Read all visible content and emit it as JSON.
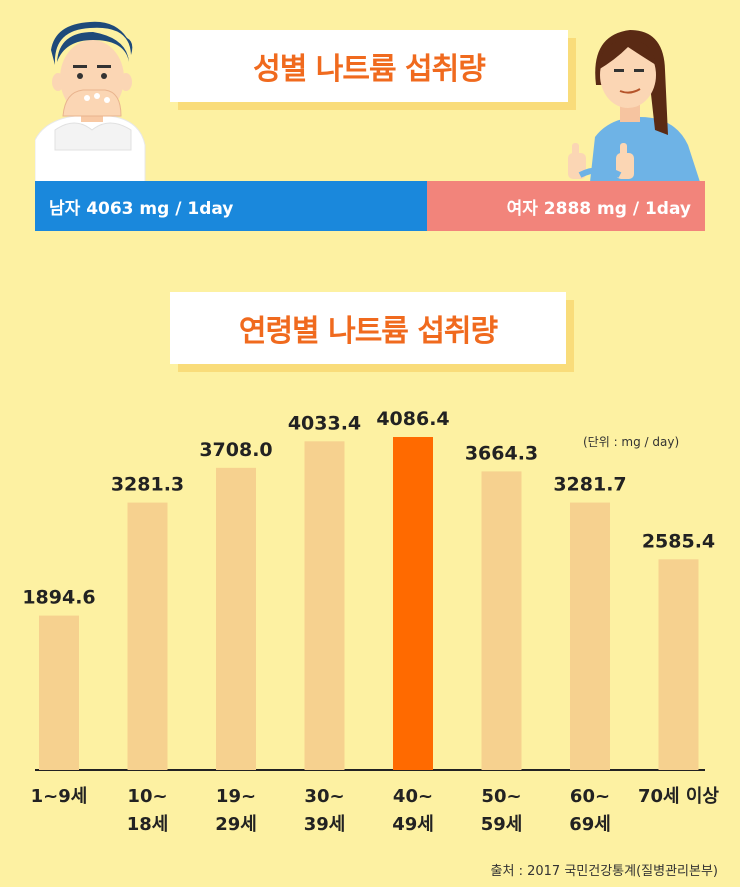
{
  "header": {
    "title": "성별 나트륨 섭취량"
  },
  "gender": {
    "male_label": "남자 4063 mg / 1day",
    "female_label": "여자 2888 mg / 1day",
    "male_value": 4063,
    "female_value": 2888,
    "male_color": "#1a88dc",
    "female_color": "#f2847b"
  },
  "age_section": {
    "title": "연령별 나트륨 섭취량",
    "unit": "(단위 : mg / day)"
  },
  "source": "출처 : 2017 국민건강통계(질병관리본부)",
  "chart_data": {
    "type": "bar",
    "categories": [
      [
        "1~9세"
      ],
      [
        "10~",
        "18세"
      ],
      [
        "19~",
        "29세"
      ],
      [
        "30~",
        "39세"
      ],
      [
        "40~",
        "49세"
      ],
      [
        "50~",
        "59세"
      ],
      [
        "60~",
        "69세"
      ],
      [
        "70세 이상"
      ]
    ],
    "values": [
      1894.6,
      3281.3,
      3708.0,
      4033.4,
      4086.4,
      3664.3,
      3281.7,
      2585.4
    ],
    "value_labels": [
      "1894.6",
      "3281.3",
      "3708.0",
      "4033.4",
      "4086.4",
      "3664.3",
      "3281.7",
      "2585.4"
    ],
    "highlight_index": 4,
    "bar_color": "#f6d18f",
    "highlight_color": "#ff6a00",
    "ylim": [
      0,
      4086.4
    ],
    "grid": false
  }
}
